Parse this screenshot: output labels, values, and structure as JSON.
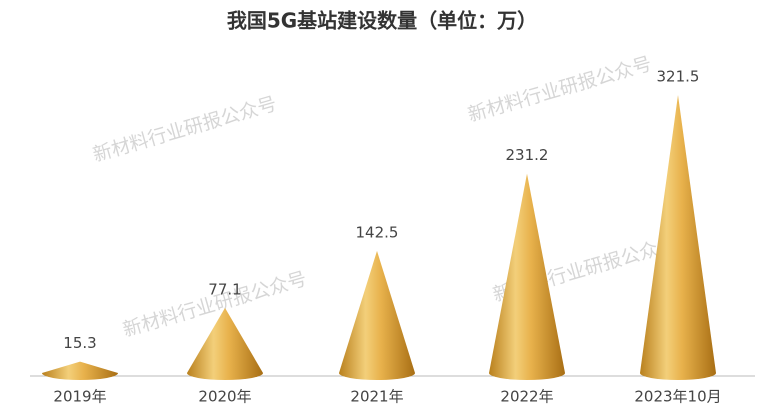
{
  "chart_data": {
    "type": "cone",
    "title": "我国5G基站建设数量（单位：万）",
    "categories": [
      "2019年",
      "2020年",
      "2021年",
      "2022年",
      "2023年10月"
    ],
    "values": [
      15.3,
      77.1,
      142.5,
      231.2,
      321.5
    ],
    "color": "#e0a93a",
    "watermark": "新材料行业研报公众号"
  }
}
